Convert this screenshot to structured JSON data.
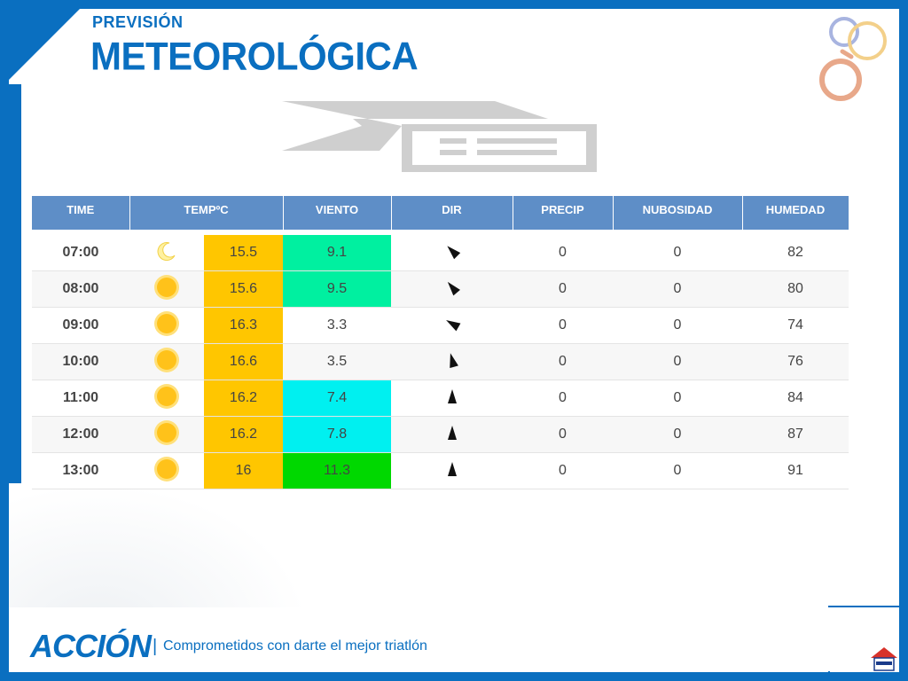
{
  "header": {
    "subtitle": "PREVISIÓN",
    "title": "METEOROLÓGICA"
  },
  "table": {
    "columns": [
      "TIME",
      "TEMPºC",
      "VIENTO",
      "DIR",
      "PRECIP",
      "NUBOSIDAD",
      "HUMEDAD"
    ],
    "rows": [
      {
        "time": "07:00",
        "icon": "moon-icon",
        "temp": "15.5",
        "wind": "9.1",
        "wind_color": "green",
        "dir_deg": -45,
        "precip": "0",
        "cloud": "0",
        "humidity": "82"
      },
      {
        "time": "08:00",
        "icon": "sun-icon",
        "temp": "15.6",
        "wind": "9.5",
        "wind_color": "green",
        "dir_deg": -40,
        "precip": "0",
        "cloud": "0",
        "humidity": "80"
      },
      {
        "time": "09:00",
        "icon": "sun-icon",
        "temp": "16.3",
        "wind": "3.3",
        "wind_color": "none",
        "dir_deg": -60,
        "precip": "0",
        "cloud": "0",
        "humidity": "74"
      },
      {
        "time": "10:00",
        "icon": "sun-icon",
        "temp": "16.6",
        "wind": "3.5",
        "wind_color": "none",
        "dir_deg": -15,
        "precip": "0",
        "cloud": "0",
        "humidity": "76"
      },
      {
        "time": "11:00",
        "icon": "sun-icon",
        "temp": "16.2",
        "wind": "7.4",
        "wind_color": "cyan",
        "dir_deg": 0,
        "precip": "0",
        "cloud": "0",
        "humidity": "84"
      },
      {
        "time": "12:00",
        "icon": "sun-icon",
        "temp": "16.2",
        "wind": "7.8",
        "wind_color": "cyan",
        "dir_deg": 0,
        "precip": "0",
        "cloud": "0",
        "humidity": "87"
      },
      {
        "time": "13:00",
        "icon": "sun-icon",
        "temp": "16",
        "wind": "11.3",
        "wind_color": "lgreen",
        "dir_deg": 0,
        "precip": "0",
        "cloud": "0",
        "humidity": "91"
      }
    ]
  },
  "footer": {
    "brand": "ACCIÓN",
    "separator": "|",
    "slogan": "Comprometidos con darte el mejor triatlón"
  },
  "colors": {
    "brand_blue": "#0a6fc0",
    "header_blue": "#5e8ec7",
    "temp_yellow": "#ffc600",
    "wind_green": "#00f0a0",
    "wind_cyan": "#00f0f0",
    "wind_lgreen": "#00d800"
  }
}
